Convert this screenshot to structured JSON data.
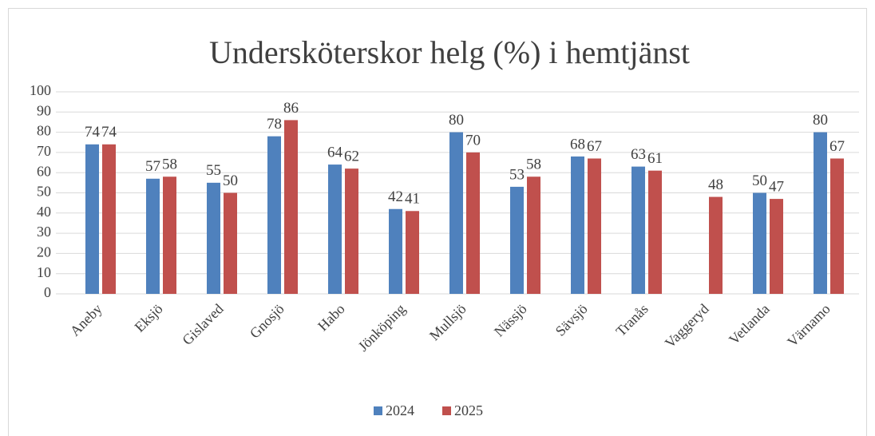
{
  "chart_data": {
    "type": "bar",
    "title": "Undersköterskor helg (%) i hemtjänst",
    "categories": [
      "Aneby",
      "Eksjö",
      "Gislaved",
      "Gnosjö",
      "Habo",
      "Jönköping",
      "Mullsjö",
      "Nässjö",
      "Sävsjö",
      "Tranås",
      "Vaggeryd",
      "Vetlanda",
      "Värnamo"
    ],
    "series": [
      {
        "name": "2024",
        "color": "#4f81bd",
        "values": [
          74,
          57,
          55,
          78,
          64,
          42,
          80,
          53,
          68,
          63,
          null,
          50,
          80
        ]
      },
      {
        "name": "2025",
        "color": "#c0504d",
        "values": [
          74,
          58,
          50,
          86,
          62,
          41,
          70,
          58,
          67,
          61,
          48,
          47,
          67
        ]
      }
    ],
    "ylim": [
      0,
      100
    ],
    "yticks": [
      0,
      10,
      20,
      30,
      40,
      50,
      60,
      70,
      80,
      90,
      100
    ],
    "grid": true,
    "legend": "bottom"
  }
}
